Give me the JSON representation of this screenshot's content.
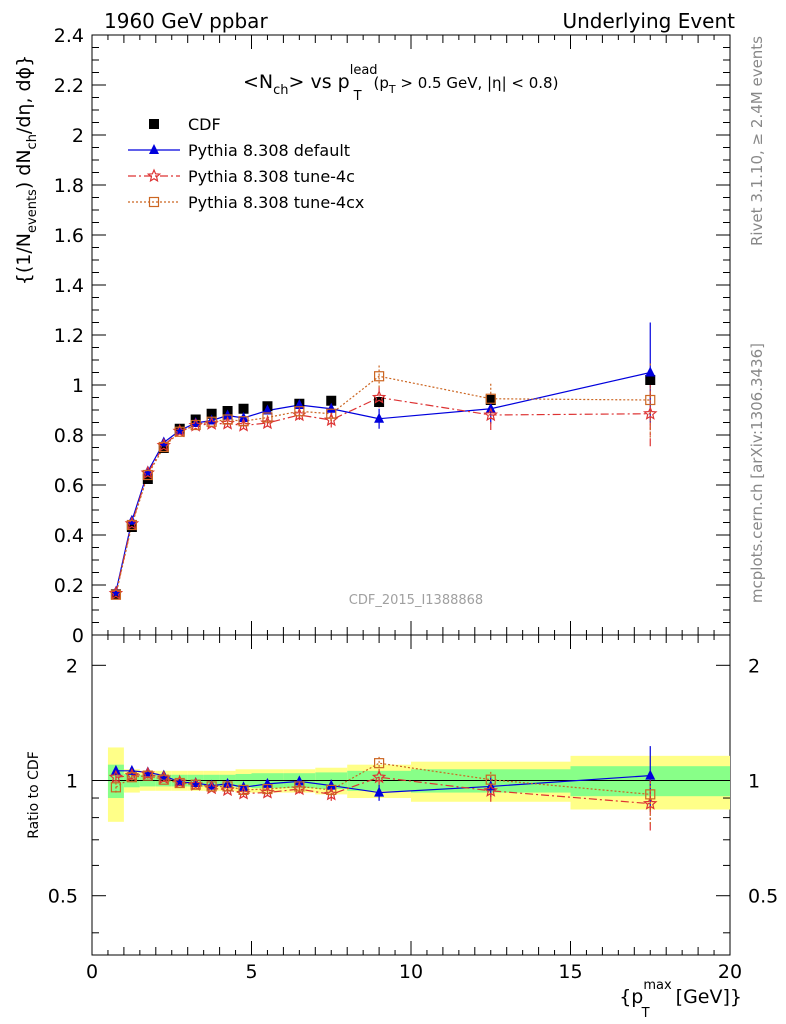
{
  "header": {
    "left": "1960 GeV ppbar",
    "right": "Underlying Event"
  },
  "plot_title": {
    "main_pre": "<N",
    "main_sub_ch": "ch",
    "main_post": "> vs p",
    "p_sup": "lead",
    "p_sub": "T",
    "cut_open": "(p",
    "cut_sub": "T",
    "cut_rest": " > 0.5 GeV, |η| < 0.8)"
  },
  "side_labels": {
    "rivet": "Rivet 3.1.10, ≥ 2.4M events",
    "mcplots": "mcplots.cern.ch [arXiv:1306.3436]"
  },
  "watermark": "CDF_2015_I1388868",
  "main_ylabel": {
    "part1": "{(1/N",
    "sub1": "events",
    "part2": ") dN",
    "sub2": "ch",
    "part3": "/dη, dϕ}"
  },
  "ratio_ylabel": "Ratio to CDF",
  "xlabel": {
    "open": "{p",
    "sup": "max",
    "sub": "T",
    "close": " [GeV]}"
  },
  "colors": {
    "cdf": "#000000",
    "default": "#0000dd",
    "tune4c": "#dd3333",
    "tune4cx": "#cc6622",
    "band_yellow": "#ffff88",
    "band_green": "#88ff88"
  },
  "legend": [
    {
      "key": "cdf",
      "label": "CDF"
    },
    {
      "key": "default",
      "label": "Pythia 8.308 default"
    },
    {
      "key": "tune4c",
      "label": "Pythia 8.308 tune-4c"
    },
    {
      "key": "tune4cx",
      "label": "Pythia 8.308 tune-4cx"
    }
  ],
  "chart_data": {
    "type": "scatter",
    "title": "<Nch> vs pT lead (pT > 0.5 GeV, |η| < 0.8)",
    "xlabel": "{pT max [GeV]}",
    "ylabel": "{(1/Nevents) dNch/dη, dϕ}",
    "xlim": [
      0,
      20
    ],
    "ylim": [
      0,
      2.4
    ],
    "xticks": [
      0,
      5,
      10,
      15,
      20
    ],
    "yticks": [
      0.2,
      0.4,
      0.6,
      0.8,
      1,
      1.2,
      1.4,
      1.6,
      1.8,
      2,
      2.2,
      2.4
    ],
    "ytick_labels": [
      "0.2",
      "0.4",
      "0.6",
      "0.8",
      "1",
      "1.2",
      "1.4",
      "1.6",
      "1.8",
      "2",
      "2.2",
      "2.4"
    ],
    "y_bottom_label": "0",
    "bins": [
      [
        0.5,
        1
      ],
      [
        1,
        1.5
      ],
      [
        1.5,
        2
      ],
      [
        2,
        2.5
      ],
      [
        2.5,
        3
      ],
      [
        3,
        3.5
      ],
      [
        3.5,
        4
      ],
      [
        4,
        4.5
      ],
      [
        4.5,
        5
      ],
      [
        5,
        6
      ],
      [
        6,
        7
      ],
      [
        7,
        8
      ],
      [
        8,
        10
      ],
      [
        10,
        15
      ],
      [
        15,
        20
      ]
    ],
    "x": [
      0.75,
      1.25,
      1.75,
      2.25,
      2.75,
      3.25,
      3.75,
      4.25,
      4.75,
      5.5,
      6.5,
      7.5,
      9,
      12.5,
      17.5
    ],
    "series": [
      {
        "key": "cdf",
        "name": "CDF",
        "values": [
          0.163,
          0.432,
          0.624,
          0.748,
          0.825,
          0.862,
          0.885,
          0.896,
          0.905,
          0.915,
          0.925,
          0.937,
          0.932,
          0.94,
          1.02
        ]
      },
      {
        "key": "default",
        "name": "Pythia 8.308 default",
        "values": [
          0.173,
          0.457,
          0.654,
          0.77,
          0.818,
          0.848,
          0.858,
          0.878,
          0.868,
          0.898,
          0.92,
          0.905,
          0.865,
          0.905,
          1.05
        ],
        "errors": [
          0.005,
          0.008,
          0.01,
          0.01,
          0.01,
          0.01,
          0.012,
          0.013,
          0.014,
          0.015,
          0.02,
          0.03,
          0.04,
          0.06,
          0.2
        ]
      },
      {
        "key": "tune4c",
        "name": "Pythia 8.308 tune-4c",
        "values": [
          0.166,
          0.445,
          0.648,
          0.758,
          0.815,
          0.838,
          0.845,
          0.846,
          0.838,
          0.848,
          0.88,
          0.86,
          0.95,
          0.88,
          0.885
        ],
        "errors": [
          0.005,
          0.008,
          0.01,
          0.01,
          0.01,
          0.01,
          0.012,
          0.013,
          0.014,
          0.015,
          0.02,
          0.03,
          0.04,
          0.06,
          0.13
        ]
      },
      {
        "key": "tune4cx",
        "name": "Pythia 8.308 tune-4cx",
        "values": [
          0.161,
          0.44,
          0.64,
          0.752,
          0.813,
          0.84,
          0.853,
          0.862,
          0.855,
          0.87,
          0.895,
          0.885,
          1.035,
          0.945,
          0.94
        ],
        "errors": [
          0.005,
          0.008,
          0.01,
          0.01,
          0.01,
          0.01,
          0.012,
          0.013,
          0.014,
          0.015,
          0.02,
          0.03,
          0.045,
          0.06,
          0.15
        ]
      }
    ],
    "ratio": {
      "ylabel": "Ratio to CDF",
      "yrange": [
        0.35,
        2.4
      ],
      "ytick_labels": [
        {
          "v": 0.5,
          "label": "0.5"
        },
        {
          "v": 1,
          "label": "1"
        },
        {
          "v": 2,
          "label": "2"
        }
      ],
      "band_green": [
        0.1,
        0.04,
        0.035,
        0.035,
        0.035,
        0.035,
        0.035,
        0.035,
        0.04,
        0.045,
        0.045,
        0.05,
        0.06,
        0.07,
        0.09
      ],
      "band_yellow": [
        0.22,
        0.07,
        0.06,
        0.06,
        0.06,
        0.06,
        0.06,
        0.06,
        0.07,
        0.07,
        0.07,
        0.08,
        0.1,
        0.12,
        0.16
      ],
      "series": [
        {
          "key": "default",
          "values": [
            1.06,
            1.06,
            1.05,
            1.03,
            0.99,
            0.985,
            0.97,
            0.98,
            0.96,
            0.98,
            0.995,
            0.97,
            0.93,
            0.965,
            1.03
          ],
          "errors": [
            0.03,
            0.02,
            0.02,
            0.015,
            0.015,
            0.015,
            0.015,
            0.015,
            0.015,
            0.02,
            0.025,
            0.035,
            0.045,
            0.06,
            0.2
          ]
        },
        {
          "key": "tune4c",
          "values": [
            1.02,
            1.03,
            1.04,
            1.015,
            0.99,
            0.975,
            0.955,
            0.945,
            0.925,
            0.93,
            0.95,
            0.92,
            1.02,
            0.94,
            0.87
          ],
          "errors": [
            0.03,
            0.02,
            0.02,
            0.015,
            0.015,
            0.015,
            0.015,
            0.015,
            0.015,
            0.02,
            0.025,
            0.035,
            0.045,
            0.06,
            0.13
          ]
        },
        {
          "key": "tune4cx",
          "values": [
            0.96,
            1.02,
            1.03,
            1.005,
            0.985,
            0.975,
            0.965,
            0.965,
            0.945,
            0.95,
            0.965,
            0.945,
            1.11,
            1.005,
            0.92
          ],
          "errors": [
            0.03,
            0.02,
            0.02,
            0.015,
            0.015,
            0.015,
            0.015,
            0.015,
            0.015,
            0.02,
            0.025,
            0.035,
            0.05,
            0.06,
            0.15
          ]
        }
      ]
    }
  }
}
